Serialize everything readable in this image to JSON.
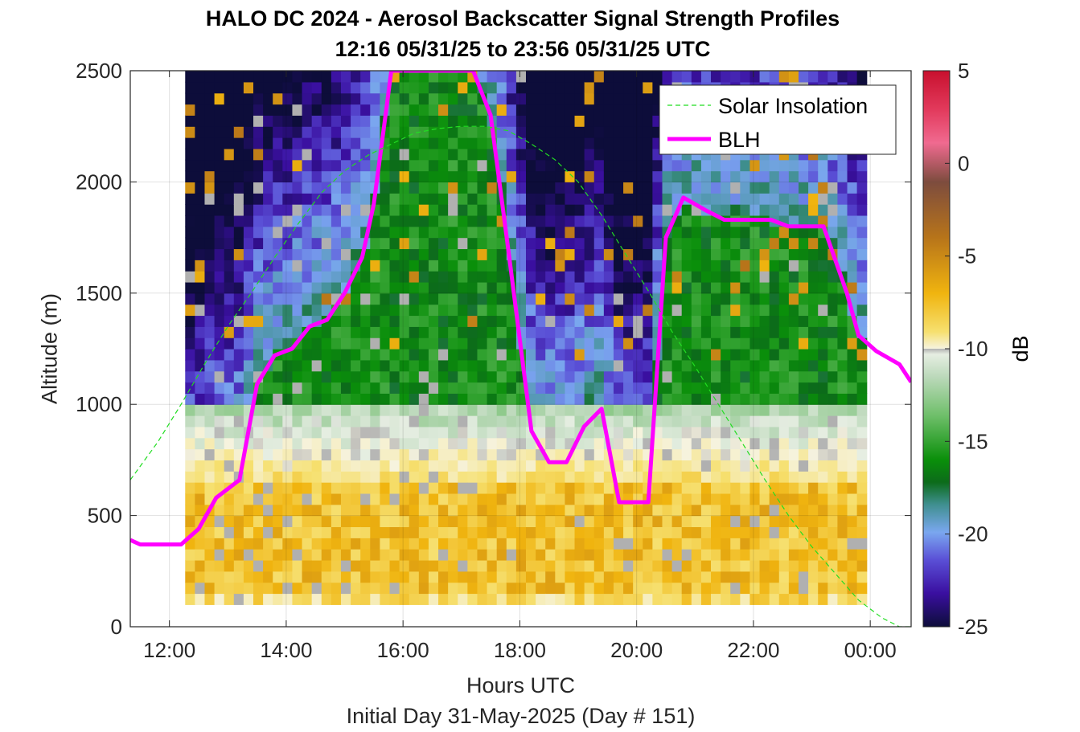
{
  "chart_data": {
    "type": "heatmap",
    "title": "HALO DC 2024 - Aerosol Backscatter Signal Strength Profiles",
    "subtitle": "12:16 05/31/25 to 23:56 05/31/25  UTC",
    "xlabel": "Hours UTC",
    "footer": "Initial Day 31-May-2025 (Day # 151)",
    "ylabel": "Altitude (m)",
    "colorbar_label": "dB",
    "xlim": [
      11.33,
      24.7
    ],
    "ylim": [
      0,
      2500
    ],
    "x_ticks": [
      12,
      14,
      16,
      18,
      20,
      22,
      24
    ],
    "x_tick_labels": [
      "12:00",
      "14:00",
      "16:00",
      "18:00",
      "20:00",
      "22:00",
      "00:00"
    ],
    "y_ticks": [
      0,
      500,
      1000,
      1500,
      2000,
      2500
    ],
    "y_tick_labels": [
      "0",
      "500",
      "1000",
      "1500",
      "2000",
      "2500"
    ],
    "clim": [
      -25,
      5
    ],
    "c_ticks": [
      5,
      0,
      -5,
      -10,
      -15,
      -20,
      -25
    ],
    "c_tick_labels": [
      "5",
      "0",
      "-5",
      "-10",
      "-15",
      "-20",
      "-25"
    ],
    "grid": true,
    "legend_position": "top-right",
    "legend": [
      {
        "label": "Solar Insolation",
        "color": "#22dd22",
        "style": "dashed"
      },
      {
        "label": "BLH",
        "color": "#ff00ff",
        "style": "solid"
      }
    ],
    "heatmap": {
      "x_start": 12.27,
      "x_end": 23.93,
      "x_step": 0.1667,
      "y_start": 100,
      "y_end": 2500,
      "y_step": 50,
      "unit": "dB",
      "note_profile_dB": {
        "100": -7,
        "300": -6,
        "600": -8,
        "900": -11,
        "1200": -13,
        "1600": -16,
        "2000": -16,
        "2400": -19
      }
    },
    "series": [
      {
        "name": "BLH",
        "x": [
          11.33,
          11.5,
          12.0,
          12.2,
          12.5,
          12.8,
          13.2,
          13.5,
          13.8,
          14.1,
          14.4,
          14.7,
          15.0,
          15.3,
          15.5,
          15.7,
          15.8,
          17.2,
          17.5,
          17.8,
          18.2,
          18.5,
          18.8,
          19.1,
          19.4,
          19.7,
          19.9,
          20.2,
          20.5,
          20.8,
          21.2,
          21.5,
          21.8,
          22.3,
          22.6,
          22.9,
          23.2,
          23.6,
          23.8,
          24.1,
          24.5,
          24.7
        ],
        "y": [
          390,
          370,
          370,
          370,
          440,
          580,
          660,
          1090,
          1220,
          1250,
          1350,
          1380,
          1500,
          1660,
          1900,
          2300,
          2500,
          2500,
          2300,
          1700,
          880,
          740,
          740,
          900,
          980,
          560,
          560,
          560,
          1750,
          1930,
          1870,
          1830,
          1830,
          1830,
          1800,
          1800,
          1800,
          1500,
          1310,
          1240,
          1180,
          1100
        ]
      },
      {
        "name": "Solar Insolation",
        "x": [
          11.33,
          11.8,
          12.2,
          12.6,
          13.0,
          13.4,
          13.8,
          14.2,
          14.6,
          15.0,
          15.4,
          15.8,
          16.2,
          16.6,
          17.0,
          17.4,
          17.8,
          18.2,
          18.6,
          19.0,
          19.4,
          19.8,
          20.2,
          20.6,
          21.0,
          21.4,
          21.8,
          22.2,
          22.6,
          23.0,
          23.4,
          23.8,
          24.2,
          24.5,
          24.7
        ],
        "y": [
          660,
          830,
          1000,
          1180,
          1350,
          1500,
          1660,
          1810,
          1950,
          2050,
          2120,
          2170,
          2220,
          2240,
          2250,
          2250,
          2230,
          2170,
          2100,
          2000,
          1850,
          1680,
          1510,
          1330,
          1170,
          1000,
          830,
          660,
          500,
          360,
          240,
          120,
          40,
          0,
          0
        ]
      }
    ]
  }
}
